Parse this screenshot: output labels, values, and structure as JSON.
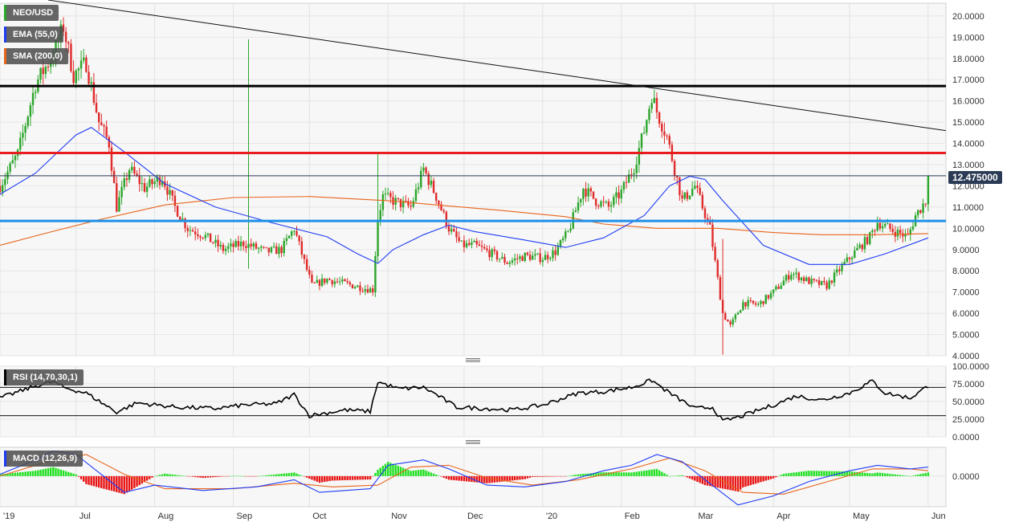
{
  "symbol": "NEO/USD",
  "indicators": {
    "ema_label": "EMA (55,0)",
    "sma_label": "SMA (200,0)",
    "rsi_label": "RSI (14,70,30,1)",
    "macd_label": "MACD (12,26,9)"
  },
  "colors": {
    "ema": "#1f3cf5",
    "sma": "#e8641b",
    "up": "#2aa52a",
    "down": "#e02b2b",
    "resistance": "#e81e1e",
    "support": "#1e90e8",
    "top_line": "#000000",
    "trendline": "#111111",
    "rsi": "#000000",
    "macd": "#1f3cf5",
    "signal": "#e8641b",
    "hist_pos": "#21e021",
    "hist_neg": "#e81313"
  },
  "current_price": "12.475000",
  "chart_data": [
    {
      "type": "candlestick",
      "title": "NEO/USD",
      "y_ticks": [
        "20.0000",
        "19.0000",
        "18.0000",
        "17.0000",
        "16.0000",
        "15.0000",
        "14.0000",
        "13.0000",
        "12.0000",
        "11.0000",
        "10.0000",
        "9.0000",
        "8.0000",
        "7.0000",
        "6.0000",
        "5.0000",
        "4.0000"
      ],
      "ylim": [
        4.0,
        20.6
      ],
      "x_ticks": [
        "'19",
        "Jul",
        "Aug",
        "Sep",
        "Oct",
        "Nov",
        "Dec",
        "'20",
        "Feb",
        "Mar",
        "Apr",
        "May",
        "Jun"
      ],
      "x_range": [
        "2019-06-01",
        "2020-06-08"
      ],
      "grid": true,
      "horizontal_levels": [
        {
          "name": "top",
          "value": 16.7
        },
        {
          "name": "resistance",
          "value": 13.55
        },
        {
          "name": "support",
          "value": 10.35
        },
        {
          "name": "current",
          "value": 12.475
        }
      ],
      "trendline": [
        [
          "2019-06-20",
          20.75
        ],
        [
          "2020-06-08",
          14.6
        ]
      ],
      "close_path": [
        [
          "2019-06-01",
          12.0
        ],
        [
          "2019-06-08",
          13.5
        ],
        [
          "2019-06-15",
          16.8
        ],
        [
          "2019-06-22",
          18.2
        ],
        [
          "2019-06-26",
          19.5
        ],
        [
          "2019-06-30",
          17.2
        ],
        [
          "2019-07-05",
          17.8
        ],
        [
          "2019-07-10",
          15.0
        ],
        [
          "2019-07-14",
          14.0
        ],
        [
          "2019-07-17",
          11.0
        ],
        [
          "2019-07-22",
          12.8
        ],
        [
          "2019-07-28",
          11.9
        ],
        [
          "2019-08-04",
          12.4
        ],
        [
          "2019-08-09",
          11.0
        ],
        [
          "2019-08-14",
          10.0
        ],
        [
          "2019-08-20",
          9.7
        ],
        [
          "2019-08-28",
          9.0
        ],
        [
          "2019-09-05",
          9.3
        ],
        [
          "2019-09-14",
          8.9
        ],
        [
          "2019-09-20",
          9.0
        ],
        [
          "2019-09-25",
          10.0
        ],
        [
          "2019-09-28",
          8.8
        ],
        [
          "2019-10-02",
          7.3
        ],
        [
          "2019-10-08",
          7.6
        ],
        [
          "2019-10-15",
          7.4
        ],
        [
          "2019-10-22",
          7.2
        ],
        [
          "2019-10-26",
          7.1
        ],
        [
          "2019-10-28",
          10.5
        ],
        [
          "2019-10-30",
          11.5
        ],
        [
          "2019-11-05",
          11.2
        ],
        [
          "2019-11-10",
          11.0
        ],
        [
          "2019-11-15",
          12.8
        ],
        [
          "2019-11-20",
          11.5
        ],
        [
          "2019-11-25",
          10.0
        ],
        [
          "2019-11-30",
          9.2
        ],
        [
          "2019-12-05",
          9.2
        ],
        [
          "2019-12-12",
          8.8
        ],
        [
          "2019-12-18",
          8.4
        ],
        [
          "2019-12-25",
          8.7
        ],
        [
          "2020-01-01",
          8.6
        ],
        [
          "2020-01-06",
          8.9
        ],
        [
          "2020-01-11",
          9.8
        ],
        [
          "2020-01-17",
          11.9
        ],
        [
          "2020-01-22",
          11.3
        ],
        [
          "2020-01-27",
          11.0
        ],
        [
          "2020-02-01",
          11.7
        ],
        [
          "2020-02-06",
          12.9
        ],
        [
          "2020-02-10",
          14.6
        ],
        [
          "2020-02-13",
          16.3
        ],
        [
          "2020-02-15",
          15.5
        ],
        [
          "2020-02-19",
          14.3
        ],
        [
          "2020-02-25",
          11.3
        ],
        [
          "2020-03-01",
          12.0
        ],
        [
          "2020-03-07",
          10.0
        ],
        [
          "2020-03-12",
          6.0
        ],
        [
          "2020-03-15",
          5.4
        ],
        [
          "2020-03-20",
          6.5
        ],
        [
          "2020-03-26",
          6.4
        ],
        [
          "2020-04-01",
          7.0
        ],
        [
          "2020-04-08",
          7.9
        ],
        [
          "2020-04-15",
          7.5
        ],
        [
          "2020-04-22",
          7.3
        ],
        [
          "2020-04-28",
          8.2
        ],
        [
          "2020-05-04",
          9.0
        ],
        [
          "2020-05-09",
          9.6
        ],
        [
          "2020-05-12",
          10.3
        ],
        [
          "2020-05-18",
          9.9
        ],
        [
          "2020-05-24",
          9.6
        ],
        [
          "2020-05-27",
          10.6
        ],
        [
          "2020-05-31",
          11.3
        ],
        [
          "2020-06-01",
          12.475
        ]
      ],
      "ema_path": [
        [
          "2019-06-01",
          11.6
        ],
        [
          "2019-06-15",
          12.6
        ],
        [
          "2019-07-01",
          14.4
        ],
        [
          "2019-07-07",
          14.75
        ],
        [
          "2019-07-20",
          13.6
        ],
        [
          "2019-08-05",
          12.1
        ],
        [
          "2019-08-25",
          11.0
        ],
        [
          "2019-09-15",
          10.3
        ],
        [
          "2019-10-08",
          9.6
        ],
        [
          "2019-10-20",
          8.8
        ],
        [
          "2019-10-28",
          8.35
        ],
        [
          "2019-11-03",
          9.0
        ],
        [
          "2019-11-15",
          9.7
        ],
        [
          "2019-11-25",
          10.15
        ],
        [
          "2019-12-05",
          9.85
        ],
        [
          "2019-12-25",
          9.45
        ],
        [
          "2020-01-10",
          9.1
        ],
        [
          "2020-01-25",
          9.55
        ],
        [
          "2020-02-10",
          10.6
        ],
        [
          "2020-02-20",
          12.0
        ],
        [
          "2020-02-28",
          12.45
        ],
        [
          "2020-03-05",
          12.3
        ],
        [
          "2020-03-12",
          11.3
        ],
        [
          "2020-03-28",
          9.2
        ],
        [
          "2020-04-15",
          8.3
        ],
        [
          "2020-05-01",
          8.3
        ],
        [
          "2020-05-15",
          8.8
        ],
        [
          "2020-06-01",
          9.55
        ]
      ],
      "sma_path": [
        [
          "2019-06-01",
          9.2
        ],
        [
          "2019-06-20",
          9.8
        ],
        [
          "2019-07-10",
          10.4
        ],
        [
          "2019-08-05",
          11.1
        ],
        [
          "2019-09-01",
          11.45
        ],
        [
          "2019-10-01",
          11.5
        ],
        [
          "2019-11-01",
          11.3
        ],
        [
          "2019-11-20",
          11.1
        ],
        [
          "2019-12-15",
          10.85
        ],
        [
          "2020-01-10",
          10.55
        ],
        [
          "2020-01-25",
          10.2
        ],
        [
          "2020-02-15",
          10.0
        ],
        [
          "2020-03-10",
          10.0
        ],
        [
          "2020-04-01",
          9.8
        ],
        [
          "2020-04-20",
          9.7
        ],
        [
          "2020-05-10",
          9.7
        ],
        [
          "2020-06-01",
          9.75
        ]
      ],
      "spikes": [
        {
          "date": "2019-09-07",
          "high": 18.9,
          "low": 8.1
        },
        {
          "date": "2019-10-28",
          "high": 13.5,
          "low": 8.4
        },
        {
          "date": "2020-03-12",
          "high": 9.5,
          "low": 4.05
        }
      ]
    },
    {
      "type": "line",
      "title": "RSI (14,70,30,1)",
      "y_ticks": [
        "100.0000",
        "75.0000",
        "50.0000",
        "25.0000",
        "0.0000"
      ],
      "ylim": [
        0,
        100
      ],
      "levels": [
        70,
        30
      ],
      "rsi_path": [
        [
          "2019-06-01",
          55
        ],
        [
          "2019-06-15",
          72
        ],
        [
          "2019-06-22",
          78
        ],
        [
          "2019-06-26",
          70
        ],
        [
          "2019-07-05",
          62
        ],
        [
          "2019-07-17",
          35
        ],
        [
          "2019-07-25",
          48
        ],
        [
          "2019-08-10",
          42
        ],
        [
          "2019-08-25",
          40
        ],
        [
          "2019-09-05",
          45
        ],
        [
          "2019-09-18",
          47
        ],
        [
          "2019-09-25",
          60
        ],
        [
          "2019-10-01",
          30
        ],
        [
          "2019-10-15",
          38
        ],
        [
          "2019-10-25",
          36
        ],
        [
          "2019-10-28",
          78
        ],
        [
          "2019-11-05",
          68
        ],
        [
          "2019-11-15",
          70
        ],
        [
          "2019-11-20",
          60
        ],
        [
          "2019-11-28",
          42
        ],
        [
          "2019-12-10",
          40
        ],
        [
          "2019-12-20",
          38
        ],
        [
          "2020-01-01",
          45
        ],
        [
          "2020-01-15",
          62
        ],
        [
          "2020-01-25",
          64
        ],
        [
          "2020-02-05",
          70
        ],
        [
          "2020-02-13",
          80
        ],
        [
          "2020-02-20",
          62
        ],
        [
          "2020-03-01",
          40
        ],
        [
          "2020-03-08",
          42
        ],
        [
          "2020-03-12",
          22
        ],
        [
          "2020-03-20",
          30
        ],
        [
          "2020-04-01",
          45
        ],
        [
          "2020-04-10",
          58
        ],
        [
          "2020-04-20",
          52
        ],
        [
          "2020-05-01",
          62
        ],
        [
          "2020-05-10",
          79
        ],
        [
          "2020-05-15",
          62
        ],
        [
          "2020-05-25",
          55
        ],
        [
          "2020-06-01",
          72
        ]
      ]
    },
    {
      "type": "bar",
      "title": "MACD (12,26,9)",
      "y_ticks": [
        "0.0000"
      ],
      "ylim": [
        -1.7,
        1.6
      ],
      "macd_path": [
        [
          "2019-06-01",
          0.1
        ],
        [
          "2019-06-15",
          0.9
        ],
        [
          "2019-06-22",
          1.4
        ],
        [
          "2019-07-01",
          1.2
        ],
        [
          "2019-07-10",
          0.2
        ],
        [
          "2019-07-20",
          -0.9
        ],
        [
          "2019-08-01",
          -0.5
        ],
        [
          "2019-08-20",
          -0.8
        ],
        [
          "2019-09-10",
          -0.6
        ],
        [
          "2019-09-25",
          -0.2
        ],
        [
          "2019-10-05",
          -0.9
        ],
        [
          "2019-10-25",
          -0.7
        ],
        [
          "2019-11-01",
          0.6
        ],
        [
          "2019-11-15",
          0.9
        ],
        [
          "2019-11-25",
          0.4
        ],
        [
          "2019-12-10",
          -0.5
        ],
        [
          "2019-12-25",
          -0.6
        ],
        [
          "2020-01-10",
          -0.3
        ],
        [
          "2020-01-25",
          0.3
        ],
        [
          "2020-02-05",
          0.6
        ],
        [
          "2020-02-15",
          1.2
        ],
        [
          "2020-02-25",
          0.8
        ],
        [
          "2020-03-05",
          -0.2
        ],
        [
          "2020-03-18",
          -1.6
        ],
        [
          "2020-04-01",
          -1.1
        ],
        [
          "2020-04-15",
          -0.3
        ],
        [
          "2020-05-01",
          0.3
        ],
        [
          "2020-05-12",
          0.6
        ],
        [
          "2020-05-25",
          0.4
        ],
        [
          "2020-06-01",
          0.5
        ]
      ],
      "signal_path": [
        [
          "2019-06-01",
          0.0
        ],
        [
          "2019-06-22",
          0.9
        ],
        [
          "2019-07-05",
          1.2
        ],
        [
          "2019-07-20",
          0.1
        ],
        [
          "2019-08-05",
          -0.7
        ],
        [
          "2019-09-01",
          -0.7
        ],
        [
          "2019-09-25",
          -0.4
        ],
        [
          "2019-10-10",
          -0.6
        ],
        [
          "2019-10-28",
          -0.5
        ],
        [
          "2019-11-10",
          0.5
        ],
        [
          "2019-11-25",
          0.6
        ],
        [
          "2019-12-10",
          -0.1
        ],
        [
          "2019-12-28",
          -0.5
        ],
        [
          "2020-01-15",
          -0.2
        ],
        [
          "2020-02-05",
          0.4
        ],
        [
          "2020-02-20",
          1.0
        ],
        [
          "2020-03-05",
          0.3
        ],
        [
          "2020-03-20",
          -0.9
        ],
        [
          "2020-04-05",
          -1.0
        ],
        [
          "2020-04-25",
          -0.2
        ],
        [
          "2020-05-10",
          0.4
        ],
        [
          "2020-05-25",
          0.4
        ],
        [
          "2020-06-01",
          0.3
        ]
      ]
    }
  ],
  "x_axis_labels": [
    "'19",
    "Jul",
    "Aug",
    "Sep",
    "Oct",
    "Nov",
    "Dec",
    "'20",
    "Feb",
    "Mar",
    "Apr",
    "May",
    "Jun"
  ]
}
